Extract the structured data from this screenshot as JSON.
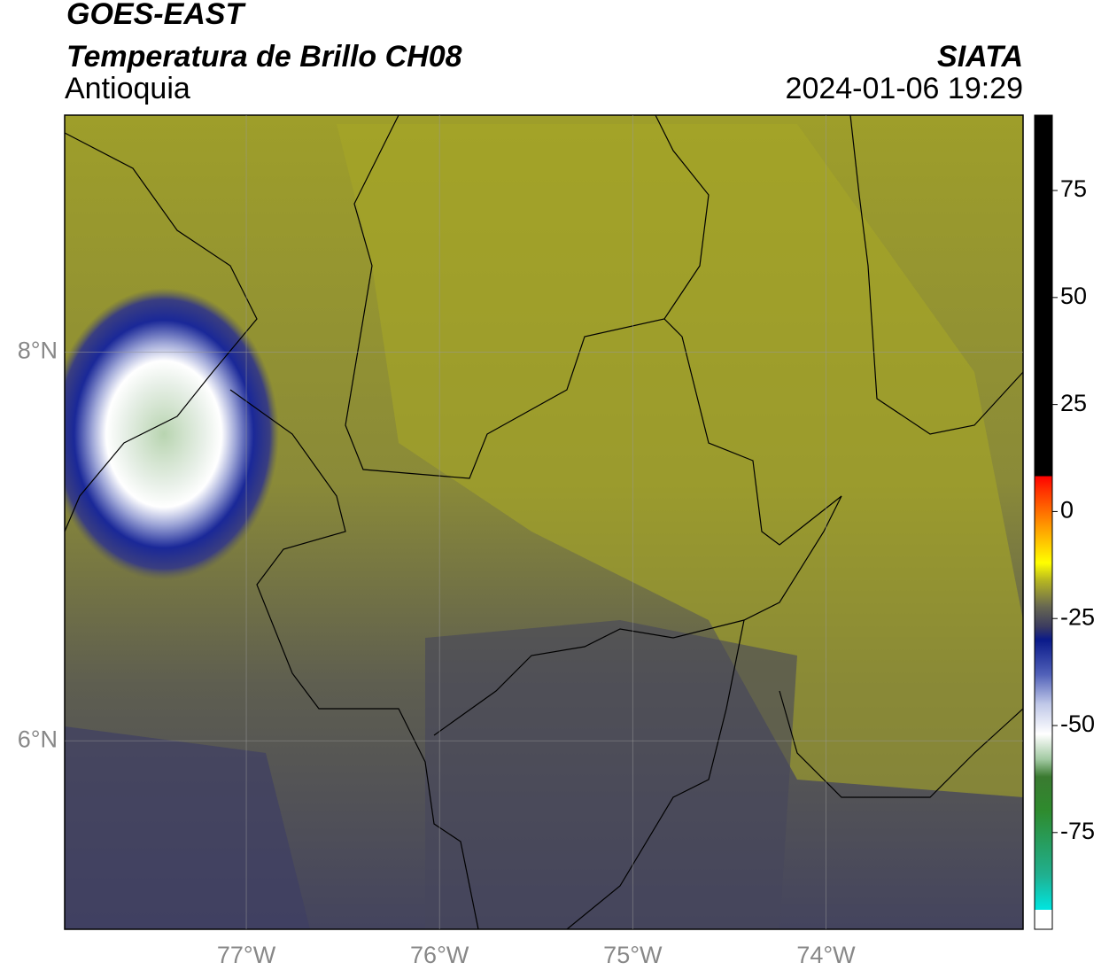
{
  "header": {
    "title": "GOES-EAST",
    "subtitle": "Temperatura de Brillo CH08",
    "region": "Antioquia",
    "source": "SIATA",
    "datetime": "2024-01-06 19:29"
  },
  "map": {
    "xlim": [
      -77.94,
      -72.98
    ],
    "ylim": [
      5.03,
      9.22
    ],
    "xticks": [
      {
        "value": -77,
        "label": "77°W"
      },
      {
        "value": -76,
        "label": "76°W"
      },
      {
        "value": -75,
        "label": "75°W"
      },
      {
        "value": -74,
        "label": "74°W"
      }
    ],
    "yticks": [
      {
        "value": 6,
        "label": "6°N"
      },
      {
        "value": 8,
        "label": "8°N"
      }
    ],
    "grid": true,
    "grid_color": "#999999"
  },
  "colorbar": {
    "clim": [
      -97.6,
      92.6
    ],
    "ticks": [
      -75,
      -50,
      -25,
      0,
      25,
      50,
      75
    ],
    "colormap": [
      {
        "value": -97.6,
        "color": "#ffffff"
      },
      {
        "value": -93,
        "color": "#ffffff"
      },
      {
        "value": -93,
        "color": "#00e5e0"
      },
      {
        "value": -85,
        "color": "#20b090"
      },
      {
        "value": -70,
        "color": "#2e8b2e"
      },
      {
        "value": -62,
        "color": "#3a7a30"
      },
      {
        "value": -58,
        "color": "#a0c8a0"
      },
      {
        "value": -52,
        "color": "#ffffff"
      },
      {
        "value": -45,
        "color": "#c0c8e8"
      },
      {
        "value": -38,
        "color": "#5060b8"
      },
      {
        "value": -30,
        "color": "#0a1a8a"
      },
      {
        "value": -27,
        "color": "#3a3a60"
      },
      {
        "value": -22,
        "color": "#6a6a50"
      },
      {
        "value": -16,
        "color": "#b8b820"
      },
      {
        "value": -12,
        "color": "#ffff00"
      },
      {
        "value": -4,
        "color": "#ffa000"
      },
      {
        "value": 5,
        "color": "#ff3000"
      },
      {
        "value": 8.3,
        "color": "#ff0000"
      },
      {
        "value": 8.3,
        "color": "#000000"
      },
      {
        "value": 92.6,
        "color": "#000000"
      }
    ]
  }
}
